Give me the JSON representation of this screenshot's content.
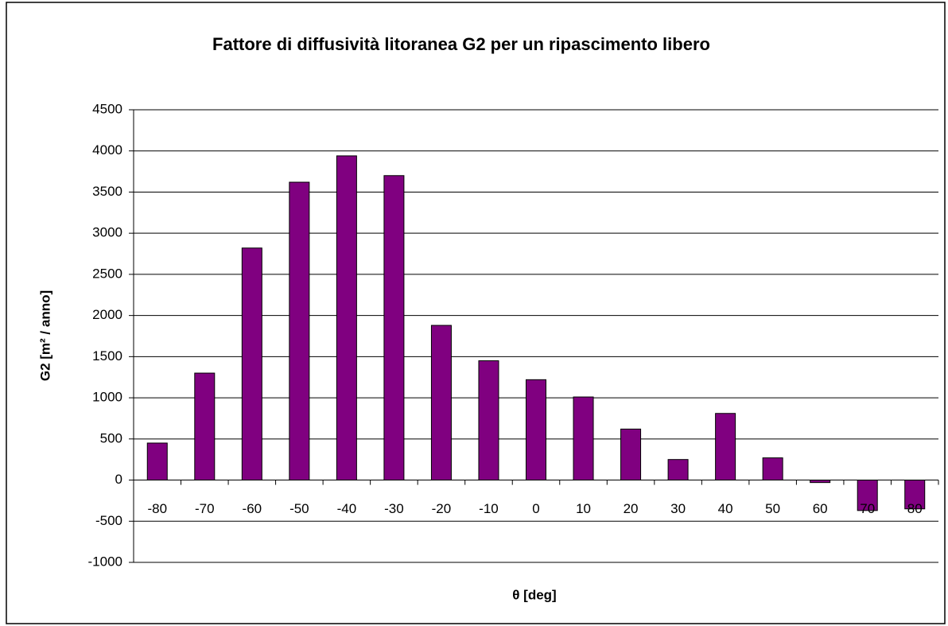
{
  "chart_data": {
    "type": "bar",
    "title": "Fattore di diffusività litoranea G2 per un ripascimento libero",
    "y_label": "G2 [m² / anno]",
    "x_label": "θ [deg]",
    "categories": [
      "-80",
      "-70",
      "-60",
      "-50",
      "-40",
      "-30",
      "-20",
      "-10",
      "0",
      "10",
      "20",
      "30",
      "40",
      "50",
      "60",
      "70",
      "80"
    ],
    "values": [
      450,
      1300,
      2820,
      3620,
      3940,
      3700,
      1880,
      1450,
      1220,
      1010,
      620,
      250,
      810,
      270,
      -30,
      -370,
      -350
    ],
    "color": "#800080",
    "ylim": [
      -1000,
      4500
    ],
    "yticks": [
      -1000,
      -500,
      0,
      500,
      1000,
      1500,
      2000,
      2500,
      3000,
      3500,
      4000,
      4500
    ],
    "grid": true
  }
}
